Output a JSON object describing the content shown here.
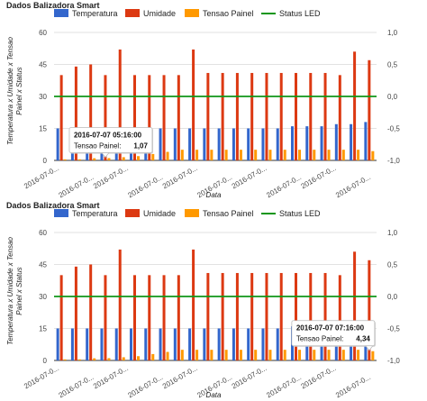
{
  "chart_data": [
    {
      "type": "bar",
      "title": "Dados Balizadora Smart",
      "xlabel": "Data",
      "ylabel": "Temperatura x Umidade x Tensao Painel x Status",
      "ylim": [
        0,
        60
      ],
      "y_ticks": [
        "0",
        "15",
        "30",
        "45",
        "60"
      ],
      "y2lim": [
        -1.0,
        1.0
      ],
      "y2_ticks": [
        "-1,0",
        "-0,5",
        "0,0",
        "0,5",
        "1,0"
      ],
      "category_labels": [
        "2016-07-0...",
        "2016-07-0...",
        "2016-07-0...",
        "2016-07-0...",
        "2016-07-0...",
        "2016-07-0...",
        "2016-07-0...",
        "2016-07-0...",
        "2016-07-0...",
        "2016-07-0..."
      ],
      "grid": true,
      "legend_position": "top",
      "series": [
        {
          "name": "Temperatura",
          "type": "bar",
          "color": "#3366cc",
          "values": [
            15,
            15,
            15,
            15,
            15,
            15,
            15,
            15,
            15,
            15,
            15,
            15,
            15,
            15,
            15,
            15,
            16,
            16,
            16,
            17,
            17,
            18
          ]
        },
        {
          "name": "Umidade",
          "type": "bar",
          "color": "#dc3912",
          "values": [
            40,
            44,
            45,
            40,
            52,
            40,
            40,
            40,
            40,
            52,
            41,
            41,
            41,
            41,
            41,
            41,
            41,
            41,
            41,
            40,
            51,
            47
          ]
        },
        {
          "name": "Tensao Painel",
          "type": "bar",
          "color": "#ff9900",
          "values": [
            0.5,
            0.5,
            1,
            1.07,
            1.5,
            2,
            3,
            4,
            5,
            5,
            5,
            5,
            5,
            5,
            5,
            5,
            5,
            5,
            5,
            5,
            5,
            4.34
          ]
        },
        {
          "name": "Status LED",
          "type": "line",
          "color": "#109618",
          "axis": "right",
          "values": [
            0,
            0,
            0,
            0,
            0,
            0,
            0,
            0,
            0,
            0,
            0,
            0,
            0,
            0,
            0,
            0,
            0,
            0,
            0,
            0,
            0,
            0
          ]
        }
      ],
      "tooltip": {
        "index": 3,
        "title": "2016-07-07 05:16:00",
        "label": "Tensao Painel:",
        "value": "1,07"
      }
    },
    {
      "type": "bar",
      "title": "Dados Balizadora Smart",
      "xlabel": "Data",
      "ylabel": "Temperatura x Umidade x Tensao Painel x Status",
      "ylim": [
        0,
        60
      ],
      "y_ticks": [
        "0",
        "15",
        "30",
        "45",
        "60"
      ],
      "y2lim": [
        -1.0,
        1.0
      ],
      "y2_ticks": [
        "-1,0",
        "-0,5",
        "0,0",
        "0,5",
        "1,0"
      ],
      "category_labels": [
        "2016-07-0...",
        "2016-07-0...",
        "2016-07-0...",
        "2016-07-0...",
        "2016-07-0...",
        "2016-07-0...",
        "2016-07-0...",
        "2016-07-0...",
        "2016-07-0...",
        "2016-07-0..."
      ],
      "grid": true,
      "legend_position": "top",
      "series": [
        {
          "name": "Temperatura",
          "type": "bar",
          "color": "#3366cc",
          "values": [
            15,
            15,
            15,
            15,
            15,
            15,
            15,
            15,
            15,
            15,
            15,
            15,
            15,
            15,
            15,
            15,
            16,
            16,
            16,
            17,
            17,
            18
          ]
        },
        {
          "name": "Umidade",
          "type": "bar",
          "color": "#dc3912",
          "values": [
            40,
            44,
            45,
            40,
            52,
            40,
            40,
            40,
            40,
            52,
            41,
            41,
            41,
            41,
            41,
            41,
            41,
            41,
            41,
            40,
            51,
            47
          ]
        },
        {
          "name": "Tensao Painel",
          "type": "bar",
          "color": "#ff9900",
          "values": [
            0.5,
            0.5,
            1,
            1.07,
            1.5,
            2,
            3,
            4,
            5,
            5,
            5,
            5,
            5,
            5,
            5,
            5,
            5,
            5,
            5,
            5,
            5,
            4.34
          ]
        },
        {
          "name": "Status LED",
          "type": "line",
          "color": "#109618",
          "axis": "right",
          "values": [
            0,
            0,
            0,
            0,
            0,
            0,
            0,
            0,
            0,
            0,
            0,
            0,
            0,
            0,
            0,
            0,
            0,
            0,
            0,
            0,
            0,
            0
          ]
        }
      ],
      "tooltip": {
        "index": 21,
        "title": "2016-07-07 07:16:00",
        "label": "Tensao Painel:",
        "value": "4,34"
      }
    }
  ]
}
